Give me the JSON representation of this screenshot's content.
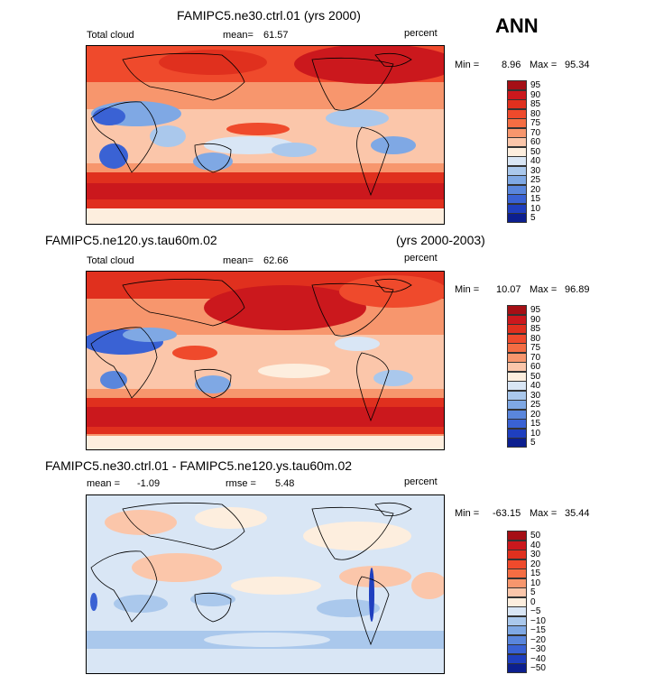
{
  "season": "ANN",
  "panels": [
    {
      "case_title": "FAMIPC5.ne30.ctrl.01 (yrs 2000)",
      "years": "",
      "left_label": "Total cloud",
      "stat_label": "mean=",
      "stat_value": "61.57",
      "stat2_label": "",
      "stat2_value": "",
      "units": "percent",
      "min_label": "Min =",
      "min_value": "8.96",
      "max_label": "Max =",
      "max_value": "95.34",
      "legend_levels": [
        "95",
        "90",
        "85",
        "80",
        "75",
        "70",
        "60",
        "50",
        "40",
        "30",
        "25",
        "20",
        "15",
        "10",
        "5"
      ],
      "legend_colors": [
        "#a50f15",
        "#cb181d",
        "#e0301e",
        "#ef4a2c",
        "#f46d43",
        "#f7966d",
        "#fbc6aa",
        "#fdeede",
        "#d9e6f5",
        "#aac8ec",
        "#7fa8e4",
        "#5a86dc",
        "#3a62d4",
        "#1f3fbf",
        "#0c1f8f"
      ]
    },
    {
      "case_title": "FAMIPC5.ne120.ys.tau60m.02",
      "years": "(yrs 2000-2003)",
      "left_label": "Total cloud",
      "stat_label": "mean=",
      "stat_value": "62.66",
      "stat2_label": "",
      "stat2_value": "",
      "units": "percent",
      "min_label": "Min =",
      "min_value": "10.07",
      "max_label": "Max =",
      "max_value": "96.89",
      "legend_levels": [
        "95",
        "90",
        "85",
        "80",
        "75",
        "70",
        "60",
        "50",
        "40",
        "30",
        "25",
        "20",
        "15",
        "10",
        "5"
      ],
      "legend_colors": [
        "#a50f15",
        "#cb181d",
        "#e0301e",
        "#ef4a2c",
        "#f46d43",
        "#f7966d",
        "#fbc6aa",
        "#fdeede",
        "#d9e6f5",
        "#aac8ec",
        "#7fa8e4",
        "#5a86dc",
        "#3a62d4",
        "#1f3fbf",
        "#0c1f8f"
      ]
    },
    {
      "case_title": "FAMIPC5.ne30.ctrl.01 - FAMIPC5.ne120.ys.tau60m.02",
      "years": "",
      "left_label": "",
      "stat_label": "mean =",
      "stat_value": "-1.09",
      "stat2_label": "rmse =",
      "stat2_value": "5.48",
      "units": "percent",
      "min_label": "Min =",
      "min_value": "-63.15",
      "max_label": "Max =",
      "max_value": "35.44",
      "legend_levels": [
        "50",
        "40",
        "30",
        "20",
        "15",
        "10",
        "5",
        "0",
        "−5",
        "−10",
        "−15",
        "−20",
        "−30",
        "−40",
        "−50"
      ],
      "legend_colors": [
        "#a50f15",
        "#cb181d",
        "#e0301e",
        "#ef4a2c",
        "#f46d43",
        "#f7966d",
        "#fbc6aa",
        "#fdeede",
        "#d9e6f5",
        "#aac8ec",
        "#7fa8e4",
        "#5a86dc",
        "#3a62d4",
        "#1f3fbf",
        "#0c1f8f"
      ]
    }
  ]
}
